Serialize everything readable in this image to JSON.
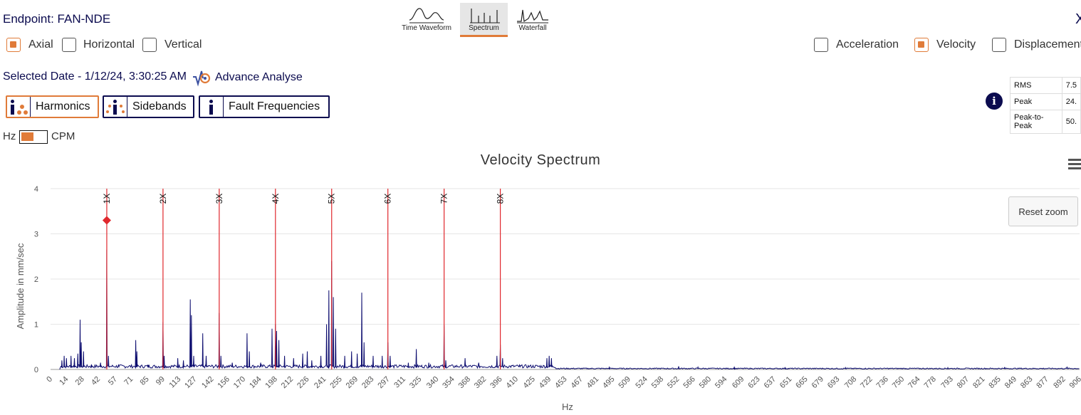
{
  "header": {
    "title": "Endpoint: FAN-NDE",
    "close_glyph": "X"
  },
  "axes_options": [
    {
      "label": "Axial",
      "checked": true
    },
    {
      "label": "Horizontal",
      "checked": false
    },
    {
      "label": "Vertical",
      "checked": false
    }
  ],
  "view_tabs": [
    {
      "label": "Time Waveform",
      "icon": "time-waveform-icon",
      "active": false
    },
    {
      "label": "Spectrum",
      "icon": "spectrum-icon",
      "active": true
    },
    {
      "label": "Waterfall",
      "icon": "waterfall-icon",
      "active": false
    }
  ],
  "unit_options": [
    {
      "label": "Acceleration",
      "checked": false
    },
    {
      "label": "Velocity",
      "checked": true
    },
    {
      "label": "Displacement",
      "checked": false
    }
  ],
  "selected_date": "Selected Date - 1/12/24, 3:30:25 AM",
  "advance_analyse": "Advance Analyse",
  "analysis_buttons": [
    {
      "label": "Harmonics",
      "selected": true
    },
    {
      "label": "Sidebands",
      "selected": false
    },
    {
      "label": "Fault Frequencies",
      "selected": false
    }
  ],
  "freq_toggle": {
    "left_label": "Hz",
    "right_label": "CPM",
    "value": "Hz"
  },
  "stats": [
    {
      "label": "RMS",
      "value": "7.5"
    },
    {
      "label": "Peak",
      "value": "24."
    },
    {
      "label": "Peak-to-Peak",
      "value": "50."
    }
  ],
  "reset_zoom": "Reset zoom",
  "colors": {
    "accent": "#e07b39",
    "navy": "#0b0b4f",
    "harmonic": "#e0282d",
    "series": "#0b0b6e"
  },
  "chart_data": {
    "type": "line",
    "title": "Velocity Spectrum",
    "xlabel": "Hz",
    "ylabel": "Amplitude in mm/sec",
    "xlim": [
      0,
      906
    ],
    "ylim": [
      0,
      4
    ],
    "yticks": [
      0,
      1,
      2,
      3,
      4
    ],
    "xticks": [
      0,
      14,
      28,
      42,
      57,
      71,
      85,
      99,
      113,
      127,
      142,
      156,
      170,
      184,
      198,
      212,
      226,
      241,
      255,
      269,
      283,
      297,
      311,
      325,
      340,
      354,
      368,
      382,
      396,
      410,
      425,
      439,
      453,
      467,
      481,
      495,
      509,
      524,
      538,
      552,
      566,
      580,
      594,
      609,
      623,
      637,
      651,
      665,
      679,
      693,
      708,
      722,
      736,
      750,
      764,
      778,
      793,
      807,
      821,
      835,
      849,
      863,
      877,
      892,
      906
    ],
    "harmonics": [
      {
        "label": "1X",
        "x": 49.5
      },
      {
        "label": "2X",
        "x": 99
      },
      {
        "label": "3X",
        "x": 148.5
      },
      {
        "label": "4X",
        "x": 198
      },
      {
        "label": "5X",
        "x": 247.5
      },
      {
        "label": "6X",
        "x": 297
      },
      {
        "label": "7X",
        "x": 346.5
      },
      {
        "label": "8X",
        "x": 396
      }
    ],
    "marker": {
      "x": 49.5,
      "y": 3.3
    },
    "peaks": [
      [
        10,
        0.2
      ],
      [
        12,
        0.3
      ],
      [
        14,
        0.25
      ],
      [
        18,
        0.3
      ],
      [
        21,
        0.25
      ],
      [
        24,
        0.35
      ],
      [
        26,
        1.1
      ],
      [
        27,
        0.6
      ],
      [
        29,
        0.4
      ],
      [
        36,
        0.1
      ],
      [
        44,
        0.15
      ],
      [
        49.5,
        2.65
      ],
      [
        51,
        0.3
      ],
      [
        60,
        0.1
      ],
      [
        75,
        0.65
      ],
      [
        76,
        0.4
      ],
      [
        86,
        0.1
      ],
      [
        99,
        1.05
      ],
      [
        100,
        0.3
      ],
      [
        112,
        0.25
      ],
      [
        117,
        0.2
      ],
      [
        123,
        1.55
      ],
      [
        124,
        1.2
      ],
      [
        126,
        0.3
      ],
      [
        134,
        0.8
      ],
      [
        137,
        0.3
      ],
      [
        148.5,
        1.25
      ],
      [
        150,
        0.3
      ],
      [
        160,
        0.15
      ],
      [
        173,
        0.8
      ],
      [
        175,
        0.4
      ],
      [
        185,
        0.15
      ],
      [
        195,
        0.9
      ],
      [
        198,
        1.0
      ],
      [
        199,
        0.85
      ],
      [
        201,
        0.65
      ],
      [
        206,
        0.3
      ],
      [
        214,
        0.25
      ],
      [
        222,
        0.35
      ],
      [
        226,
        0.4
      ],
      [
        230,
        0.2
      ],
      [
        238,
        0.3
      ],
      [
        243,
        1.0
      ],
      [
        245,
        1.75
      ],
      [
        247.5,
        2.4
      ],
      [
        249,
        1.6
      ],
      [
        251,
        0.9
      ],
      [
        259,
        0.3
      ],
      [
        265,
        0.4
      ],
      [
        270,
        0.35
      ],
      [
        274,
        1.7
      ],
      [
        276,
        0.6
      ],
      [
        284,
        0.3
      ],
      [
        292,
        0.3
      ],
      [
        297,
        0.6
      ],
      [
        299,
        0.3
      ],
      [
        315,
        0.15
      ],
      [
        322,
        0.45
      ],
      [
        333,
        0.15
      ],
      [
        346.5,
        0.98
      ],
      [
        348,
        0.2
      ],
      [
        365,
        0.25
      ],
      [
        377,
        0.15
      ],
      [
        393,
        0.3
      ],
      [
        396,
        0.55
      ],
      [
        398,
        0.25
      ],
      [
        413,
        0.1
      ],
      [
        437,
        0.25
      ],
      [
        439,
        0.3
      ],
      [
        441,
        0.25
      ],
      [
        492,
        0.05
      ],
      [
        553,
        0.07
      ],
      [
        570,
        0.05
      ],
      [
        602,
        0.05
      ],
      [
        647,
        0.04
      ],
      [
        700,
        0.04
      ],
      [
        790,
        0.04
      ],
      [
        840,
        0.05
      ],
      [
        895,
        0.06
      ]
    ],
    "noise_floor": 0.08,
    "noise_floor_high": 0.025,
    "noise_cutoff": 445
  }
}
